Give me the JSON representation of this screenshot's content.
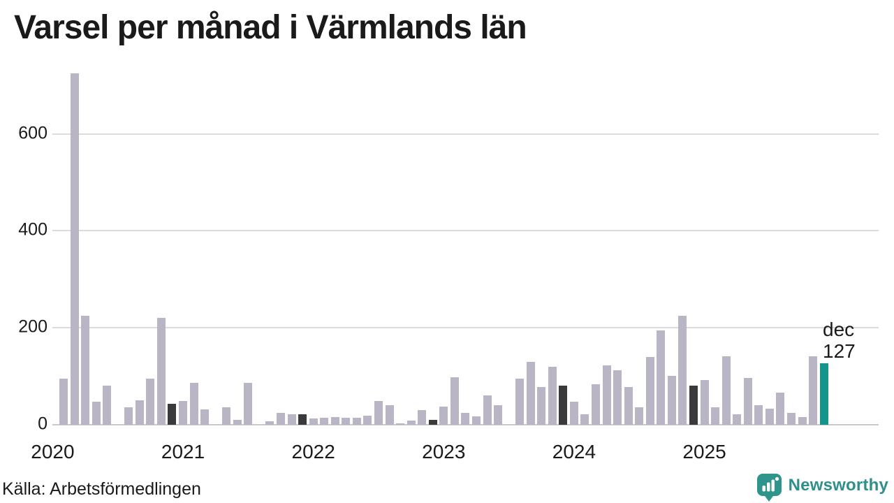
{
  "chart_data": {
    "type": "bar",
    "title": "Varsel per månad i Värmlands län",
    "x_start": "2020-01",
    "x_end": "2025-12",
    "x_tick_labels": [
      "2020",
      "2021",
      "2022",
      "2023",
      "2024",
      "2025"
    ],
    "y_ticks": [
      0,
      200,
      400,
      600
    ],
    "ylim": [
      0,
      740
    ],
    "grid": "horizontal",
    "legend": "none",
    "series_by_year": [
      {
        "year": "2020",
        "values": [
          0,
          95,
          725,
          225,
          47,
          81,
          0,
          36,
          50,
          95,
          220,
          43
        ]
      },
      {
        "year": "2021",
        "values": [
          49,
          86,
          31,
          0,
          36,
          10,
          86,
          0,
          7,
          24,
          21,
          21
        ]
      },
      {
        "year": "2022",
        "values": [
          13,
          15,
          16,
          14,
          14,
          19,
          49,
          41,
          3,
          8,
          30,
          10
        ]
      },
      {
        "year": "2023",
        "values": [
          37,
          98,
          24,
          18,
          60,
          41,
          0,
          95,
          130,
          78,
          120,
          80
        ]
      },
      {
        "year": "2024",
        "values": [
          48,
          22,
          83,
          122,
          112,
          78,
          36,
          140,
          195,
          101,
          225,
          80
        ]
      },
      {
        "year": "2025",
        "values": [
          92,
          36,
          141,
          21,
          96,
          41,
          33,
          66,
          24,
          16,
          141,
          127
        ]
      }
    ],
    "highlight_rule": "december-bars-dark, latest-bar-accent",
    "annotation": {
      "month": "dec",
      "value": 127,
      "lines": [
        "dec",
        "127"
      ]
    },
    "colors": {
      "bar": "#b9b5c4",
      "december_bar": "#3a393b",
      "accent_bar": "#14948a",
      "gridline": "#dbdbdb",
      "text": "#1a1a1a"
    }
  },
  "footer": {
    "source": "Källa: Arbetsförmedlingen",
    "brand": {
      "name": "Newsworthy",
      "color": "#2f8f8a",
      "icon": "newsworthy-pin-icon"
    }
  }
}
